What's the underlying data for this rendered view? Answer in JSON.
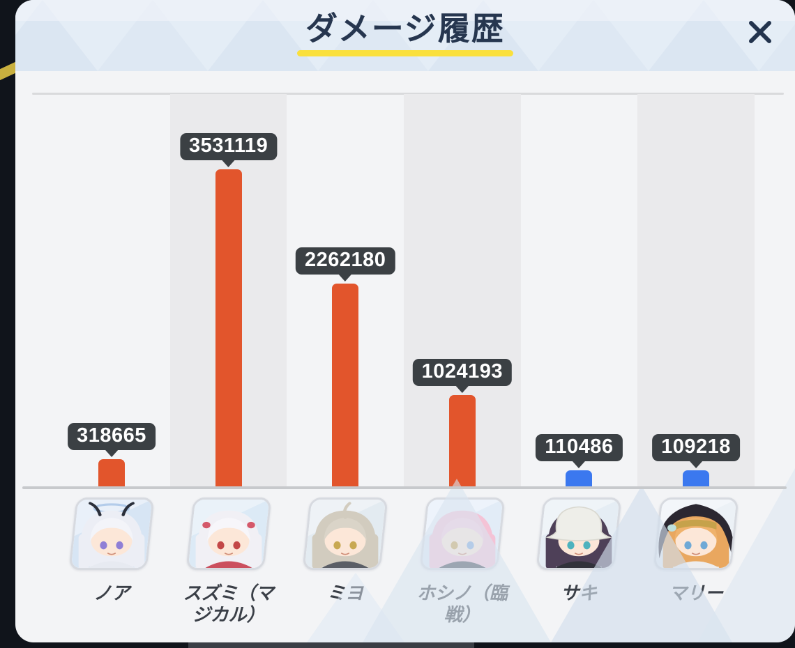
{
  "window": {
    "title": "ダメージ履歴",
    "close_icon": "x-close"
  },
  "chart_data": {
    "type": "bar",
    "title": "ダメージ履歴",
    "categories": [
      "ノア",
      "スズミ（マジカル）",
      "ミヨ",
      "ホシノ（臨戦）",
      "サキ",
      "マリー"
    ],
    "values": [
      318665,
      3531119,
      2262180,
      1024193,
      110486,
      109218
    ],
    "value_labels": [
      "318665",
      "3531119",
      "2262180",
      "1024193",
      "110486",
      "109218"
    ],
    "series": [
      {
        "name": "damage",
        "values": [
          318665,
          3531119,
          2262180,
          1024193,
          110486,
          109218
        ]
      }
    ],
    "bar_colors": [
      "#E2552C",
      "#E2552C",
      "#E2552C",
      "#E2552C",
      "#3B78EF",
      "#3B78EF"
    ],
    "xlabel": "",
    "ylabel": "",
    "ylim": [
      0,
      3531119
    ],
    "legend": "none",
    "grid": "top rule and baseline only; alternating shaded vertical column bands",
    "value_label_style": "dark rounded tooltip with caret above each bar"
  },
  "characters": [
    {
      "name": "ノア",
      "damage": 318665,
      "bar_color": "#E2552C",
      "avatar_icon": "noa-portrait",
      "avatar": {
        "bg1": "#D7E5F4",
        "bg2": "#EDF3FA",
        "hair": "#ECEEF5",
        "bangs": "#F3F4F9",
        "skin": "#FCE7D8",
        "eyeL": "#8F7FD6",
        "eyeR": "#8F7FD6",
        "outfit": "#E7EAF1",
        "extra": "antenna",
        "accent": "#2A2F3A",
        "halo": "#A9C6E8"
      }
    },
    {
      "name": "スズミ（マジカル）",
      "damage": 3531119,
      "bar_color": "#E2552C",
      "avatar_icon": "suzumi-magical-portrait",
      "avatar": {
        "bg1": "#DCEAF6",
        "bg2": "#EEF4FA",
        "hair": "#F1F0F5",
        "bangs": "#F7F6FA",
        "skin": "#FCE7D8",
        "eyeL": "#C34747",
        "eyeR": "#C34747",
        "outfit": "#CB4F5E",
        "extra": "ribbons",
        "accent": "#D4586A",
        "halo": ""
      }
    },
    {
      "name": "ミヨ",
      "damage": 2262180,
      "bar_color": "#E2552C",
      "avatar_icon": "miyo-portrait",
      "avatar": {
        "bg1": "#E3EBF1",
        "bg2": "#F0F4F8",
        "hair": "#D2CCBF",
        "bangs": "#DAD4C8",
        "skin": "#FCE7D8",
        "eyeL": "#C8A851",
        "eyeR": "#C8A851",
        "outfit": "#5A5E66",
        "extra": "ahoge",
        "accent": "#C5BFB1",
        "halo": ""
      }
    },
    {
      "name": "ホシノ（臨戦）",
      "damage": 1024193,
      "bar_color": "#E2552C",
      "avatar_icon": "hoshino-battle-portrait",
      "avatar": {
        "bg1": "#E2ECF7",
        "bg2": "#F0F5FB",
        "hair": "#F4C3D6",
        "bangs": "#F7CEDE",
        "skin": "#FCE7D8",
        "eyeL": "#C9A050",
        "eyeR": "#7FA8DC",
        "outfit": "#434956",
        "extra": "none",
        "accent": "#F0AFC9",
        "halo": ""
      }
    },
    {
      "name": "サキ",
      "damage": 110486,
      "bar_color": "#3B78EF",
      "avatar_icon": "saki-portrait",
      "avatar": {
        "bg1": "#E5EDF4",
        "bg2": "#F1F5F9",
        "hair": "#4E4058",
        "bangs": "#57485F",
        "skin": "#FCE7D8",
        "eyeL": "#4EB2BE",
        "eyeR": "#4EB2BE",
        "outfit": "#31323B",
        "extra": "bucket-hat",
        "accent": "#EEEEE9",
        "halo": ""
      }
    },
    {
      "name": "マリー",
      "damage": 109218,
      "bar_color": "#3B78EF",
      "avatar_icon": "marie-portrait",
      "avatar": {
        "bg1": "#ECF1F6",
        "bg2": "#F5F8FB",
        "hair": "#E9A75F",
        "bangs": "#EFB26C",
        "skin": "#FCE7D8",
        "eyeL": "#6FA9D6",
        "eyeR": "#6FA9D6",
        "outfit": "#EDEDEF",
        "extra": "hood",
        "accent": "#C6A24B",
        "halo": ""
      }
    }
  ],
  "colors": {
    "panel_bg": "#F3F4F6",
    "shaded_band": "#EAEAEC",
    "bar_orange": "#E2552C",
    "bar_blue": "#3B78EF",
    "tooltip_bg": "#3B4044",
    "tooltip_text": "#FFFFFF",
    "title_text": "#26364F",
    "title_underline": "#FAE03C",
    "name_text": "#3A3F47",
    "gridline": "#D9DADC",
    "baseline": "#C7C9CC",
    "outside_bg": "#10141B",
    "header_tint": "#E4EDF6"
  }
}
